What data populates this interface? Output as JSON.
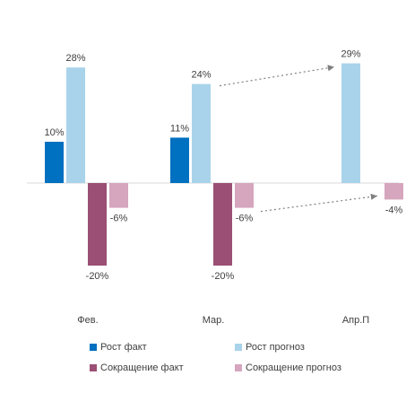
{
  "chart_data": {
    "type": "bar",
    "categories": [
      "Фев.",
      "Мар.",
      "Апр.П"
    ],
    "series": [
      {
        "name": "Рост факт",
        "color": "#0070c0",
        "values": [
          10,
          11,
          null
        ]
      },
      {
        "name": "Рост прогноз",
        "color": "#a9d3ea",
        "values": [
          28,
          24,
          29
        ]
      },
      {
        "name": "Сокращение факт",
        "color": "#9b4f75",
        "values": [
          -20,
          -20,
          null
        ]
      },
      {
        "name": "Сокращение прогноз",
        "color": "#d5a6bd",
        "values": [
          -6,
          -6,
          -4
        ]
      }
    ],
    "data_labels": [
      [
        "10%",
        "11%",
        ""
      ],
      [
        "28%",
        "24%",
        "29%"
      ],
      [
        "-20%",
        "-20%",
        ""
      ],
      [
        "-6%",
        "-6%",
        "-4%"
      ]
    ],
    "annotations": [
      "dotted arrow from Мар. Рост прогноз to Апр.П Рост прогноз",
      "dotted arrow from Мар. Сокращение прогноз to Апр.П Сокращение прогноз"
    ],
    "title": "",
    "xlabel": "",
    "ylabel": "",
    "ylim": [
      -25,
      35
    ],
    "grid": false,
    "legend_position": "bottom"
  }
}
